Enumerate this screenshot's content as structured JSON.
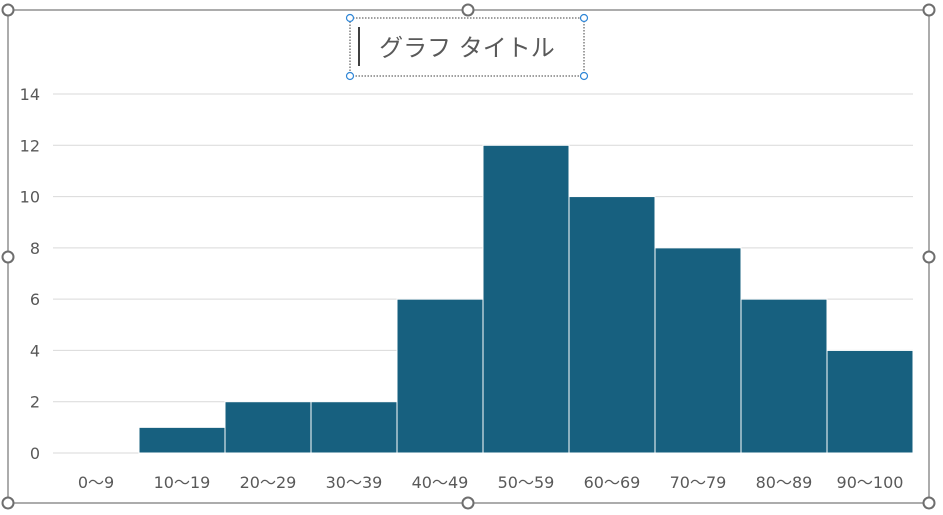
{
  "chart_data": {
    "type": "bar",
    "title": "グラフ タイトル",
    "categories": [
      "0〜9",
      "10〜19",
      "20〜29",
      "30〜39",
      "40〜49",
      "50〜59",
      "60〜69",
      "70〜79",
      "80〜89",
      "90〜100"
    ],
    "values": [
      0,
      1,
      2,
      2,
      6,
      12,
      10,
      8,
      6,
      4
    ],
    "ylim": [
      0,
      14
    ],
    "yticks": [
      "0",
      "2",
      "4",
      "6",
      "8",
      "10",
      "12",
      "14"
    ],
    "grid": true,
    "bar_color": "#17607f",
    "xlabel": "",
    "ylabel": ""
  }
}
